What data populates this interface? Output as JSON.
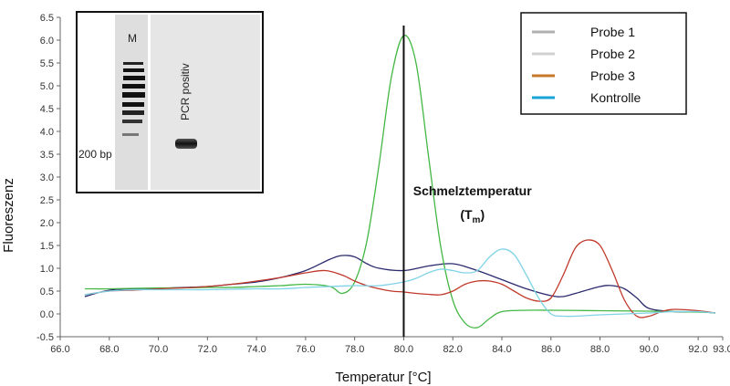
{
  "chart_data": {
    "type": "line",
    "xlabel": "Temperatur [°C]",
    "ylabel": "Fluoreszenz",
    "xlim": [
      66.0,
      93.0
    ],
    "ylim": [
      -0.5,
      6.5
    ],
    "xticks": [
      66.0,
      68.0,
      70.0,
      72.0,
      74.0,
      76.0,
      78.0,
      80.0,
      82.0,
      84.0,
      86.0,
      88.0,
      90.0,
      92.0,
      93.0
    ],
    "xtick_labels": [
      "66.0",
      "68.0",
      "70.0",
      "72.0",
      "74.0",
      "76.0",
      "78.0",
      "80.0",
      "82.0",
      "84.0",
      "86.0",
      "88.0",
      "90.0",
      "92.0",
      "93.0"
    ],
    "yticks": [
      -0.5,
      0.0,
      0.5,
      1.0,
      1.5,
      2.0,
      2.5,
      3.0,
      3.5,
      4.0,
      4.5,
      5.0,
      5.5,
      6.0,
      6.5
    ],
    "ytick_labels": [
      "-0.5",
      "0.0",
      "0.5",
      "1.0",
      "1.5",
      "2.0",
      "2.5",
      "3.0",
      "3.5",
      "4.0",
      "4.5",
      "5.0",
      "5.5",
      "6.0",
      "6.5"
    ],
    "grid": false,
    "legend_position": "top-right",
    "vline": {
      "x": 80.0
    },
    "annotation": {
      "text": "Schmelztemperatur",
      "symbol": "T",
      "subscript": "m",
      "x": 82.8,
      "y": 2.6
    },
    "series": [
      {
        "name": "Probe 1",
        "legend_color": "#b0b0b0",
        "line_color": "#2a2a6e",
        "points": [
          [
            67.0,
            0.38
          ],
          [
            68.0,
            0.52
          ],
          [
            69.0,
            0.55
          ],
          [
            70.0,
            0.56
          ],
          [
            71.0,
            0.58
          ],
          [
            72.0,
            0.6
          ],
          [
            73.0,
            0.65
          ],
          [
            74.0,
            0.7
          ],
          [
            75.0,
            0.8
          ],
          [
            76.0,
            0.95
          ],
          [
            77.0,
            1.2
          ],
          [
            77.5,
            1.28
          ],
          [
            78.0,
            1.25
          ],
          [
            78.5,
            1.1
          ],
          [
            79.0,
            1.0
          ],
          [
            80.0,
            0.95
          ],
          [
            81.0,
            1.05
          ],
          [
            82.0,
            1.1
          ],
          [
            83.0,
            0.95
          ],
          [
            84.0,
            0.75
          ],
          [
            85.0,
            0.55
          ],
          [
            86.0,
            0.4
          ],
          [
            86.5,
            0.38
          ],
          [
            87.0,
            0.45
          ],
          [
            88.0,
            0.6
          ],
          [
            88.5,
            0.62
          ],
          [
            89.0,
            0.55
          ],
          [
            89.5,
            0.35
          ],
          [
            90.0,
            0.12
          ],
          [
            91.0,
            0.05
          ],
          [
            92.0,
            0.05
          ],
          [
            92.7,
            0.02
          ]
        ]
      },
      {
        "name": "Probe 2",
        "legend_color": "#d0d0d0",
        "line_color": "#44b744",
        "points": [
          [
            67.0,
            0.55
          ],
          [
            68.0,
            0.55
          ],
          [
            69.0,
            0.56
          ],
          [
            70.0,
            0.57
          ],
          [
            71.0,
            0.57
          ],
          [
            72.0,
            0.58
          ],
          [
            73.0,
            0.58
          ],
          [
            74.0,
            0.6
          ],
          [
            75.0,
            0.62
          ],
          [
            76.0,
            0.65
          ],
          [
            77.0,
            0.6
          ],
          [
            77.5,
            0.45
          ],
          [
            78.0,
            0.7
          ],
          [
            78.5,
            1.6
          ],
          [
            79.0,
            3.3
          ],
          [
            79.5,
            5.2
          ],
          [
            80.0,
            6.1
          ],
          [
            80.5,
            5.5
          ],
          [
            81.0,
            3.5
          ],
          [
            81.5,
            1.5
          ],
          [
            82.0,
            0.3
          ],
          [
            82.5,
            -0.2
          ],
          [
            83.0,
            -0.3
          ],
          [
            83.5,
            -0.1
          ],
          [
            84.0,
            0.05
          ],
          [
            85.0,
            0.08
          ],
          [
            86.0,
            0.08
          ],
          [
            88.0,
            0.07
          ],
          [
            90.0,
            0.06
          ],
          [
            92.0,
            0.04
          ],
          [
            92.7,
            0.02
          ]
        ]
      },
      {
        "name": "Probe 3",
        "legend_color": "#c8782a",
        "line_color": "#c0392b",
        "points": [
          [
            67.0,
            0.42
          ],
          [
            68.0,
            0.5
          ],
          [
            69.0,
            0.52
          ],
          [
            70.0,
            0.55
          ],
          [
            71.0,
            0.57
          ],
          [
            72.0,
            0.6
          ],
          [
            73.0,
            0.65
          ],
          [
            74.0,
            0.72
          ],
          [
            75.0,
            0.8
          ],
          [
            76.0,
            0.9
          ],
          [
            76.8,
            0.95
          ],
          [
            77.5,
            0.85
          ],
          [
            78.0,
            0.72
          ],
          [
            78.5,
            0.62
          ],
          [
            79.0,
            0.55
          ],
          [
            79.5,
            0.5
          ],
          [
            80.0,
            0.48
          ],
          [
            80.5,
            0.45
          ],
          [
            81.0,
            0.43
          ],
          [
            81.5,
            0.42
          ],
          [
            82.0,
            0.5
          ],
          [
            82.5,
            0.65
          ],
          [
            83.0,
            0.72
          ],
          [
            83.5,
            0.72
          ],
          [
            84.0,
            0.65
          ],
          [
            84.5,
            0.5
          ],
          [
            85.0,
            0.35
          ],
          [
            85.5,
            0.28
          ],
          [
            86.0,
            0.35
          ],
          [
            86.5,
            0.85
          ],
          [
            87.0,
            1.45
          ],
          [
            87.5,
            1.62
          ],
          [
            88.0,
            1.5
          ],
          [
            88.5,
            0.95
          ],
          [
            89.0,
            0.3
          ],
          [
            89.5,
            -0.05
          ],
          [
            90.0,
            -0.05
          ],
          [
            90.5,
            0.05
          ],
          [
            91.0,
            0.1
          ],
          [
            92.0,
            0.07
          ],
          [
            92.7,
            0.02
          ]
        ]
      },
      {
        "name": "Kontrolle",
        "legend_color": "#1aa3d8",
        "line_color": "#7fd3e6",
        "points": [
          [
            67.0,
            0.42
          ],
          [
            68.0,
            0.5
          ],
          [
            69.0,
            0.53
          ],
          [
            70.0,
            0.53
          ],
          [
            71.0,
            0.53
          ],
          [
            72.0,
            0.53
          ],
          [
            73.0,
            0.54
          ],
          [
            74.0,
            0.55
          ],
          [
            75.0,
            0.55
          ],
          [
            76.0,
            0.58
          ],
          [
            77.0,
            0.6
          ],
          [
            78.0,
            0.62
          ],
          [
            79.0,
            0.62
          ],
          [
            80.0,
            0.7
          ],
          [
            80.5,
            0.78
          ],
          [
            81.0,
            0.9
          ],
          [
            81.5,
            0.98
          ],
          [
            82.0,
            0.95
          ],
          [
            82.5,
            0.9
          ],
          [
            83.0,
            0.95
          ],
          [
            83.5,
            1.25
          ],
          [
            84.0,
            1.42
          ],
          [
            84.5,
            1.3
          ],
          [
            85.0,
            0.85
          ],
          [
            85.5,
            0.35
          ],
          [
            86.0,
            0.0
          ],
          [
            86.5,
            -0.05
          ],
          [
            87.0,
            -0.05
          ],
          [
            88.0,
            -0.02
          ],
          [
            89.0,
            0.0
          ],
          [
            90.0,
            0.02
          ],
          [
            91.0,
            0.05
          ],
          [
            92.0,
            0.05
          ],
          [
            92.7,
            0.02
          ]
        ]
      }
    ],
    "inset": {
      "marker_label": "M",
      "size_label": "200 bp",
      "lane_label": "PCR positiv"
    }
  }
}
